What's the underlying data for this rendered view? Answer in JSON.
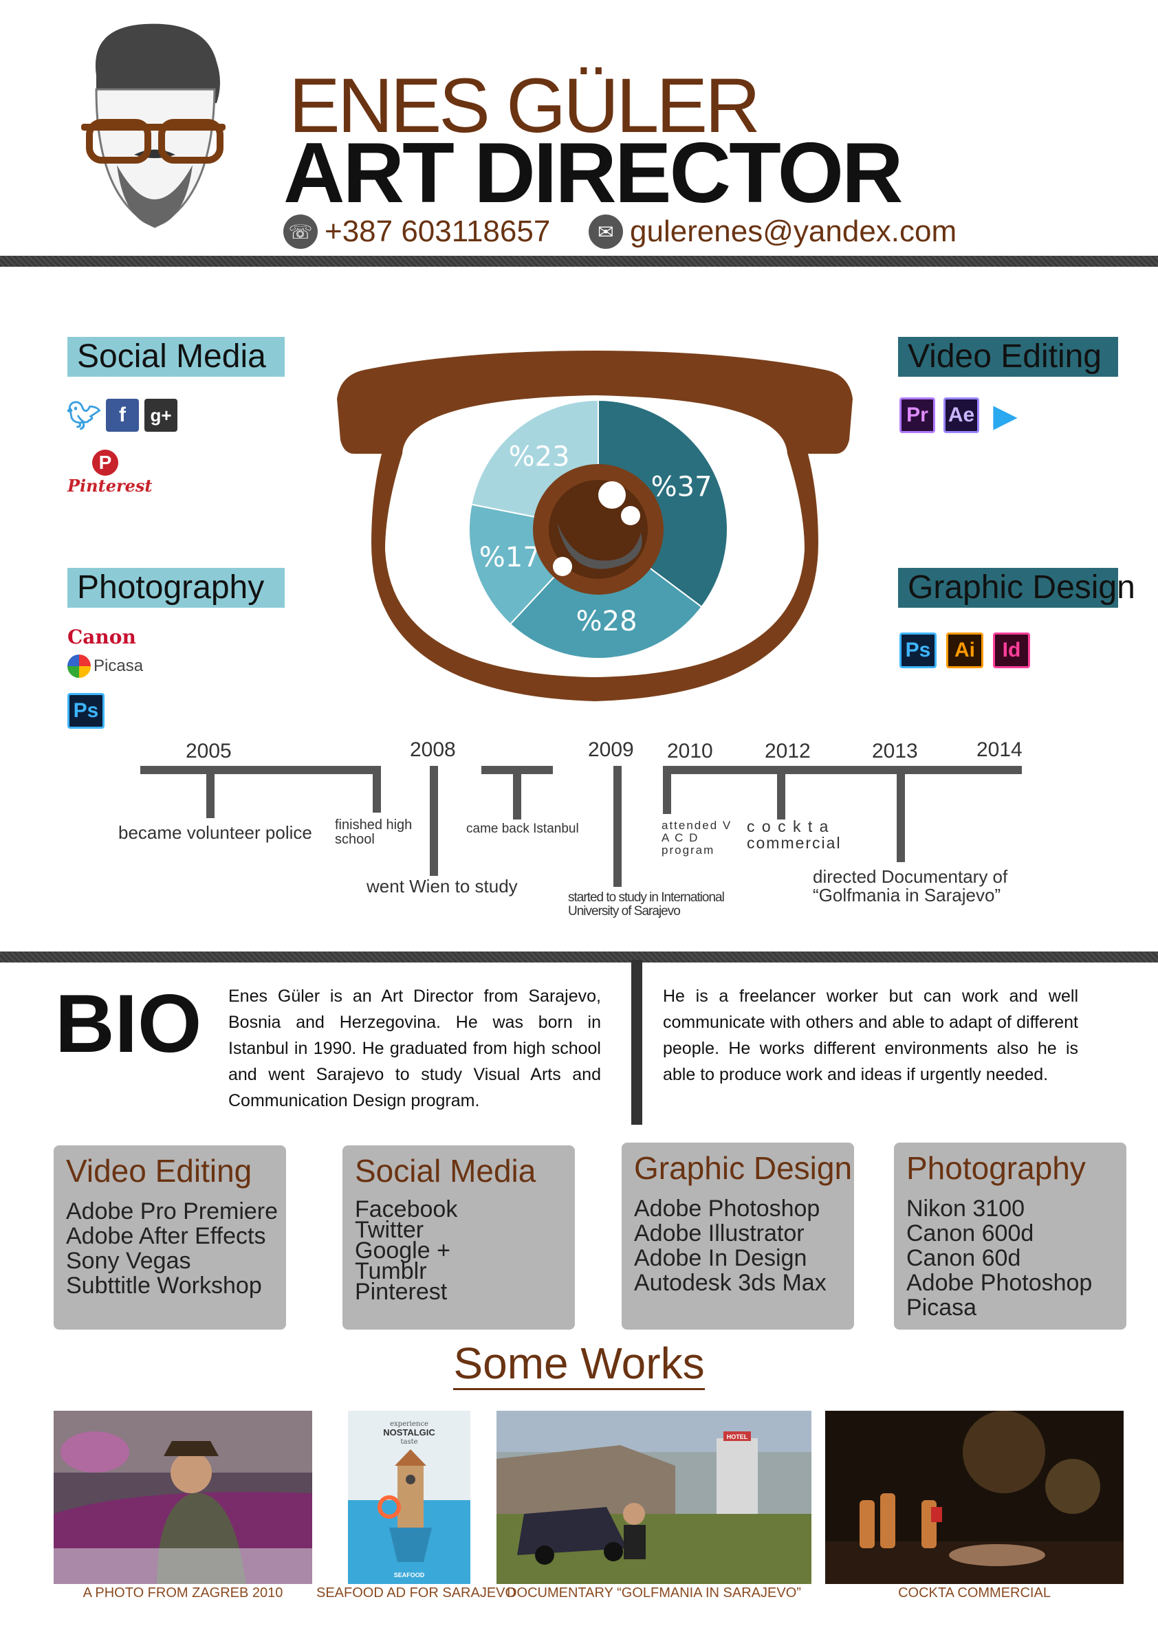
{
  "header": {
    "name": "ENES GÜLER",
    "role": "ART DIRECTOR",
    "phone": "+387 603118657",
    "email": "gulerenes@yandex.com"
  },
  "skills_panels": {
    "social_media": {
      "title": "Social Media",
      "pinterest_label": "Pinterest"
    },
    "photography": {
      "title": "Photography",
      "canon_label": "Canon",
      "picasa_label": "Picasa",
      "ps_label": "Ps"
    },
    "video_editing": {
      "title": "Video Editing",
      "icons": [
        "Pr",
        "Ae"
      ]
    },
    "graphic_design": {
      "title": "Graphic Design",
      "icons": [
        "Ps",
        "Ai",
        "Id"
      ]
    }
  },
  "chart_data": {
    "type": "pie",
    "title": "",
    "labels": [
      "%37",
      "%28",
      "%17",
      "%23"
    ],
    "values": [
      37,
      28,
      17,
      23
    ],
    "colors": [
      "#2a6f7e",
      "#4a9eb0",
      "#6bb8c8",
      "#a8d6df"
    ]
  },
  "timeline": {
    "years": [
      "2005",
      "2008",
      "2009",
      "2010",
      "2012",
      "2013",
      "2014"
    ],
    "events": [
      "became volunteer police",
      "finished high school",
      "went Wien to study",
      "came back Istanbul",
      "started to study in International University of Sarajevo",
      "attended V A C D program",
      "c o c k t a commercial",
      "directed Documentary of “Golfmania in Sarajevo”"
    ]
  },
  "bio": {
    "heading": "BIO",
    "col1": "Enes Güler is an Art Director from Sarajevo, Bosnia and Herzegovina. He was born in Istanbul in 1990. He graduated from high school and went Sarajevo to study Visual Arts and Communication Design program.",
    "col2": "He is a freelancer worker but can work and well communicate with others and able to adapt of different people. He works different environments also he is able to produce work and ideas if urgently needed."
  },
  "skill_boxes": [
    {
      "title": "Video Editing",
      "items": [
        "Adobe Pro Premiere",
        "Adobe After Effects",
        "Sony Vegas",
        "Subttitle Workshop"
      ]
    },
    {
      "title": "Social Media",
      "items": [
        "Facebook",
        "Twitter",
        "Google +",
        "Tumblr",
        "Pinterest"
      ]
    },
    {
      "title": "Graphic Design",
      "items": [
        "Adobe Photoshop",
        "Adobe Illustrator",
        "Adobe In Design",
        "Autodesk 3ds Max"
      ]
    },
    {
      "title": "Photography",
      "items": [
        "Nikon 3100",
        "Canon 600d",
        "Canon 60d",
        "Adobe Photoshop",
        "Picasa"
      ]
    }
  ],
  "works": {
    "title": "Some Works",
    "items": [
      {
        "caption": "A PHOTO FROM ZAGREB 2010"
      },
      {
        "caption": "SEAFOOD AD FOR SARAJEVO",
        "poster_line1": "experience",
        "poster_line2": "NOSTALGIC",
        "poster_line3": "taste",
        "poster_brand": "SEAFOOD"
      },
      {
        "caption": "DOCUMENTARY “GOLFMANIA IN SARAJEVO”",
        "sign": "HOTEL"
      },
      {
        "caption": "COCKTA COMMERCIAL"
      }
    ]
  }
}
